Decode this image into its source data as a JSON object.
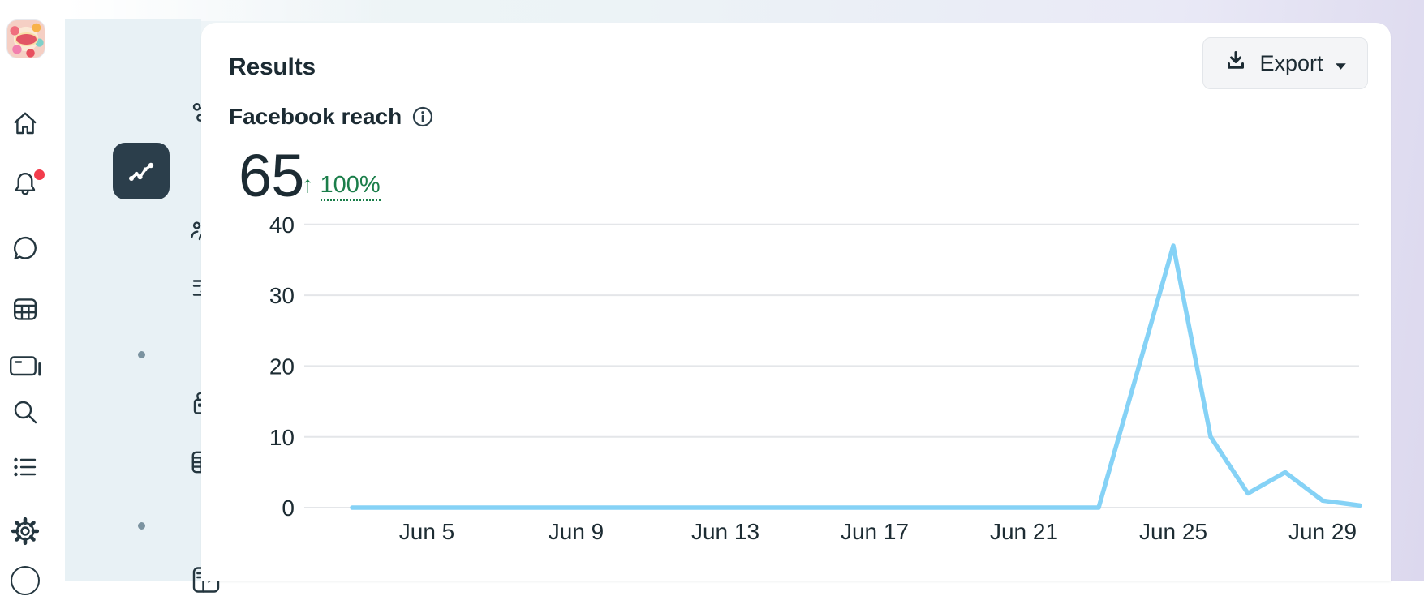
{
  "colors": {
    "icon": "#24363f",
    "selected_tile_bg": "#2b3e4b",
    "bell_badge": "#f23c4c",
    "delta_green": "#1b7e4a",
    "gridline": "#e4e6e9",
    "line_blue": "#85d2f6",
    "rail_bg": "#e8f1f5"
  },
  "left_rail": {
    "avatar": "business-page-avatar",
    "icons": [
      "home",
      "bell",
      "chat",
      "calendar",
      "ads",
      "search",
      "list",
      "gear"
    ],
    "has_bell_badge": true
  },
  "insights_rail": {
    "items": [
      {
        "type": "icon",
        "icon": "hub",
        "selected": false
      },
      {
        "type": "icon",
        "icon": "trend",
        "selected": true
      },
      {
        "type": "icon",
        "icon": "people",
        "selected": false
      },
      {
        "type": "icon",
        "icon": "search-list",
        "selected": false
      },
      {
        "type": "dot"
      },
      {
        "type": "icon",
        "icon": "cards",
        "selected": false
      },
      {
        "type": "icon",
        "icon": "table",
        "selected": false
      },
      {
        "type": "dot"
      },
      {
        "type": "icon",
        "icon": "panel",
        "selected": false
      }
    ]
  },
  "header": {
    "title": "Results",
    "export_label": "Export"
  },
  "metric": {
    "label": "Facebook reach",
    "value": "65",
    "delta_arrow": "↑",
    "delta": "100%",
    "delta_direction": "up"
  },
  "chart_data": {
    "type": "line",
    "title": "Facebook reach",
    "x": [
      "Jun 3",
      "Jun 4",
      "Jun 5",
      "Jun 6",
      "Jun 7",
      "Jun 8",
      "Jun 9",
      "Jun 10",
      "Jun 11",
      "Jun 12",
      "Jun 13",
      "Jun 14",
      "Jun 15",
      "Jun 16",
      "Jun 17",
      "Jun 18",
      "Jun 19",
      "Jun 20",
      "Jun 21",
      "Jun 22",
      "Jun 23",
      "Jun 24",
      "Jun 25",
      "Jun 26",
      "Jun 27",
      "Jun 28",
      "Jun 29",
      "Jun 30"
    ],
    "values": [
      0,
      0,
      0,
      0,
      0,
      0,
      0,
      0,
      0,
      0,
      0,
      0,
      0,
      0,
      0,
      0,
      0,
      0,
      0,
      0,
      0,
      18.5,
      37,
      10,
      2,
      5,
      1,
      0.3
    ],
    "xticks": [
      {
        "label": "Jun 5",
        "i": 2
      },
      {
        "label": "Jun 9",
        "i": 6
      },
      {
        "label": "Jun 13",
        "i": 10
      },
      {
        "label": "Jun 17",
        "i": 14
      },
      {
        "label": "Jun 21",
        "i": 18
      },
      {
        "label": "Jun 25",
        "i": 22
      },
      {
        "label": "Jun 29",
        "i": 26
      }
    ],
    "yticks": [
      0,
      10,
      20,
      30,
      40
    ],
    "ylim": [
      0,
      40
    ],
    "xlabel": "",
    "ylabel": "",
    "grid": true,
    "legend": false,
    "line_color": "#85d2f6"
  }
}
